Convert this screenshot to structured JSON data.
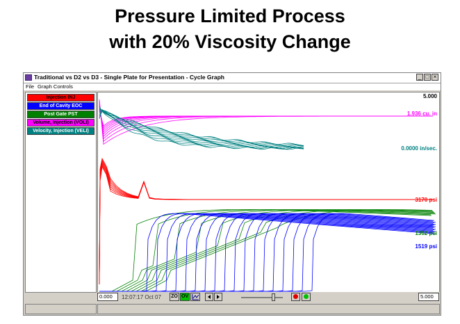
{
  "slide": {
    "title_line1": "Pressure Limited Process",
    "title_line2": "with  20% Viscosity Change"
  },
  "window": {
    "title": "Traditional vs D2 vs D3 - Single Plate for Presentation - Cycle Graph",
    "buttons": [
      "_",
      "□",
      "×"
    ]
  },
  "menu": {
    "items": [
      "File",
      "Graph Controls"
    ]
  },
  "legend": {
    "items": [
      {
        "label": "Injection INJ",
        "bg": "#ff0000",
        "fg": "#000000"
      },
      {
        "label": "End of Cavity EOC",
        "bg": "#0000ff",
        "fg": "#ffffff"
      },
      {
        "label": "Post Gate PST",
        "bg": "#008000",
        "fg": "#ffffff"
      },
      {
        "label": "Volume, Injection (VOLI)",
        "bg": "#ff00ff",
        "fg": "#000000"
      },
      {
        "label": "Velocity, Injection (VELI)",
        "bg": "#008080",
        "fg": "#ffffff"
      }
    ]
  },
  "plot": {
    "top_value": "5.000",
    "series_labels": {
      "volume": "1.936 cu. in",
      "velocity": "0.0000 in/sec.",
      "injection": "3170 psi",
      "post_gate": "1362 psi",
      "end_of_cavity": "1519 psi"
    },
    "colors": {
      "volume": "#ff00ff",
      "velocity": "#008080",
      "injection": "#ff0000",
      "post_gate": "#008000",
      "end_of_cavity": "#0000ff"
    }
  },
  "controls": {
    "left_value": "0.000",
    "timestamp": "12:07:17 Oct 07",
    "zo_label": "ZO",
    "ov_label": "OV",
    "right_value": "5.000"
  },
  "icons": [
    "app-icon",
    "chart-icon",
    "arrow-left-icon",
    "arrow-right-icon",
    "record-red-icon",
    "record-green-icon"
  ]
}
